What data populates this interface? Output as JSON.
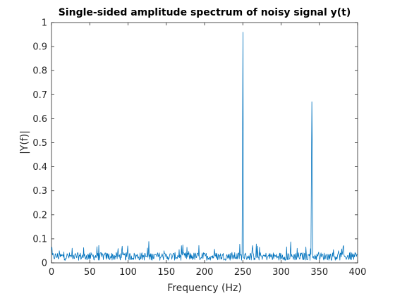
{
  "chart_data": {
    "type": "line",
    "title": "Single-sided amplitude spectrum of noisy signal y(t)",
    "xlabel": "Frequency (Hz)",
    "ylabel": "|Y(f)|",
    "xlim": [
      0,
      400
    ],
    "ylim": [
      0,
      1
    ],
    "xticks": [
      0,
      50,
      100,
      150,
      200,
      250,
      300,
      350,
      400
    ],
    "yticks": [
      0,
      0.1,
      0.2,
      0.3,
      0.4,
      0.5,
      0.6,
      0.7,
      0.8,
      0.9,
      1
    ],
    "xtick_labels": [
      "0",
      "50",
      "100",
      "150",
      "200",
      "250",
      "300",
      "350",
      "400"
    ],
    "ytick_labels": [
      "0",
      "0.1",
      "0.2",
      "0.3",
      "0.4",
      "0.5",
      "0.6",
      "0.7",
      "0.8",
      "0.9",
      "1"
    ],
    "grid": false,
    "line_color": "#0072BD",
    "peaks": [
      {
        "x": 249.4,
        "y": 0.5
      },
      {
        "x": 250.0,
        "y": 0.96
      },
      {
        "x": 340.0,
        "y": 0.67
      },
      {
        "x": 340.6,
        "y": 0.44
      },
      {
        "x": 339.4,
        "y": 0.38
      }
    ],
    "noise_floor_typical": 0.03,
    "noise_floor_max": 0.08
  }
}
